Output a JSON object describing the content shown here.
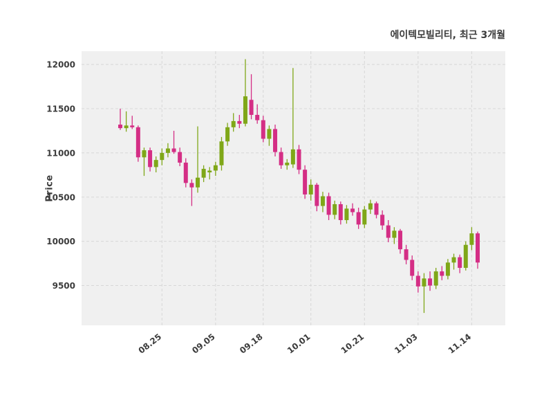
{
  "chart_data": {
    "type": "candlestick",
    "title": "에이텍모빌리티, 최근 3개월",
    "ylabel": "Price",
    "ylim": [
      9050,
      12150
    ],
    "y_ticks": [
      9500,
      10000,
      10500,
      11000,
      11500,
      12000
    ],
    "x_tick_labels": [
      "08.25",
      "09.05",
      "09.18",
      "10.01",
      "10.21",
      "11.03",
      "11.14"
    ],
    "x_tick_indices": [
      7,
      16,
      24,
      32,
      41,
      50,
      59
    ],
    "grid": true,
    "legend": "none",
    "colors": {
      "up": "#7fa718",
      "down": "#d42e85",
      "plot_bg": "#f0f0f0",
      "grid": "#d7d7d7",
      "text": "#3c3c3c"
    },
    "ohlc": [
      [
        11320,
        11500,
        11260,
        11280
      ],
      [
        11280,
        11470,
        11240,
        11310
      ],
      [
        11310,
        11420,
        11270,
        11290
      ],
      [
        11290,
        11310,
        10900,
        10950
      ],
      [
        10950,
        11060,
        10740,
        11030
      ],
      [
        11030,
        11060,
        10790,
        10840
      ],
      [
        10840,
        10960,
        10780,
        10920
      ],
      [
        10920,
        11050,
        10860,
        11000
      ],
      [
        11000,
        11110,
        10950,
        11050
      ],
      [
        11050,
        11250,
        10990,
        11010
      ],
      [
        11010,
        11060,
        10850,
        10890
      ],
      [
        10890,
        10940,
        10610,
        10660
      ],
      [
        10660,
        10700,
        10400,
        10610
      ],
      [
        10610,
        11300,
        10550,
        10720
      ],
      [
        10720,
        10860,
        10670,
        10820
      ],
      [
        10780,
        10840,
        10700,
        10800
      ],
      [
        10800,
        10900,
        10740,
        10860
      ],
      [
        10860,
        11180,
        10800,
        11130
      ],
      [
        11130,
        11340,
        11080,
        11290
      ],
      [
        11290,
        11450,
        11240,
        11360
      ],
      [
        11360,
        11430,
        11280,
        11330
      ],
      [
        11330,
        12060,
        11300,
        11640
      ],
      [
        11600,
        11890,
        11380,
        11430
      ],
      [
        11430,
        11550,
        11330,
        11370
      ],
      [
        11370,
        11420,
        11120,
        11160
      ],
      [
        11160,
        11310,
        11080,
        11270
      ],
      [
        11270,
        11320,
        10960,
        11010
      ],
      [
        11010,
        11060,
        10820,
        10860
      ],
      [
        10860,
        10930,
        10810,
        10890
      ],
      [
        10870,
        11960,
        10830,
        11040
      ],
      [
        11040,
        11090,
        10760,
        10810
      ],
      [
        10810,
        10860,
        10480,
        10530
      ],
      [
        10530,
        10700,
        10460,
        10640
      ],
      [
        10640,
        10660,
        10340,
        10400
      ],
      [
        10400,
        10560,
        10330,
        10510
      ],
      [
        10510,
        10550,
        10240,
        10300
      ],
      [
        10300,
        10460,
        10250,
        10420
      ],
      [
        10420,
        10450,
        10190,
        10240
      ],
      [
        10240,
        10410,
        10200,
        10370
      ],
      [
        10370,
        10430,
        10290,
        10330
      ],
      [
        10330,
        10380,
        10140,
        10190
      ],
      [
        10190,
        10400,
        10150,
        10360
      ],
      [
        10360,
        10470,
        10310,
        10430
      ],
      [
        10430,
        10450,
        10260,
        10300
      ],
      [
        10300,
        10350,
        10130,
        10180
      ],
      [
        10180,
        10240,
        9990,
        10040
      ],
      [
        10040,
        10160,
        9970,
        10120
      ],
      [
        10120,
        10140,
        9860,
        9910
      ],
      [
        9910,
        9960,
        9740,
        9790
      ],
      [
        9790,
        9840,
        9560,
        9610
      ],
      [
        9610,
        9660,
        9420,
        9490
      ],
      [
        9490,
        9640,
        9190,
        9580
      ],
      [
        9580,
        9660,
        9440,
        9500
      ],
      [
        9500,
        9700,
        9460,
        9660
      ],
      [
        9660,
        9720,
        9560,
        9610
      ],
      [
        9610,
        9800,
        9570,
        9760
      ],
      [
        9760,
        9860,
        9680,
        9820
      ],
      [
        9820,
        9850,
        9640,
        9700
      ],
      [
        9700,
        10000,
        9670,
        9960
      ],
      [
        9960,
        10160,
        9900,
        10090
      ],
      [
        10090,
        10110,
        9690,
        9760
      ]
    ]
  }
}
